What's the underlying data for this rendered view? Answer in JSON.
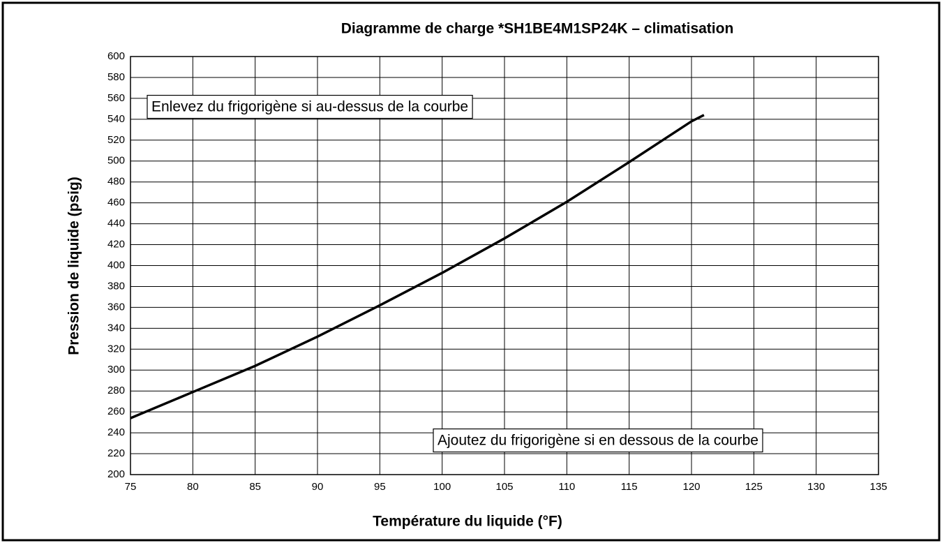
{
  "chart_data": {
    "type": "line",
    "title": "Diagramme de charge *SH1BE4M1SP24K – climatisation",
    "x_label": "Température du liquide (°F)",
    "y_label": "Pression de liquide (psig)",
    "annotations": [
      "Enlevez du frigorigène si au-dessus de la courbe",
      "Ajoutez du frigorigène si en dessous de la courbe"
    ],
    "x": [
      75,
      80,
      85,
      90,
      95,
      100,
      105,
      110,
      115,
      120,
      121
    ],
    "series": [
      {
        "color": "#000000",
        "values": [
          254,
          279,
          304,
          332,
          362,
          393,
          426,
          461,
          499,
          538,
          544
        ]
      }
    ],
    "xlim": [
      75,
      135
    ],
    "xticks": [
      75,
      80,
      85,
      90,
      95,
      100,
      105,
      110,
      115,
      120,
      125,
      130,
      135
    ],
    "ylim": [
      200,
      600
    ],
    "yticks": [
      200,
      220,
      240,
      260,
      280,
      300,
      320,
      340,
      360,
      380,
      400,
      420,
      440,
      460,
      480,
      500,
      520,
      540,
      560,
      580,
      600
    ],
    "grid": true
  }
}
